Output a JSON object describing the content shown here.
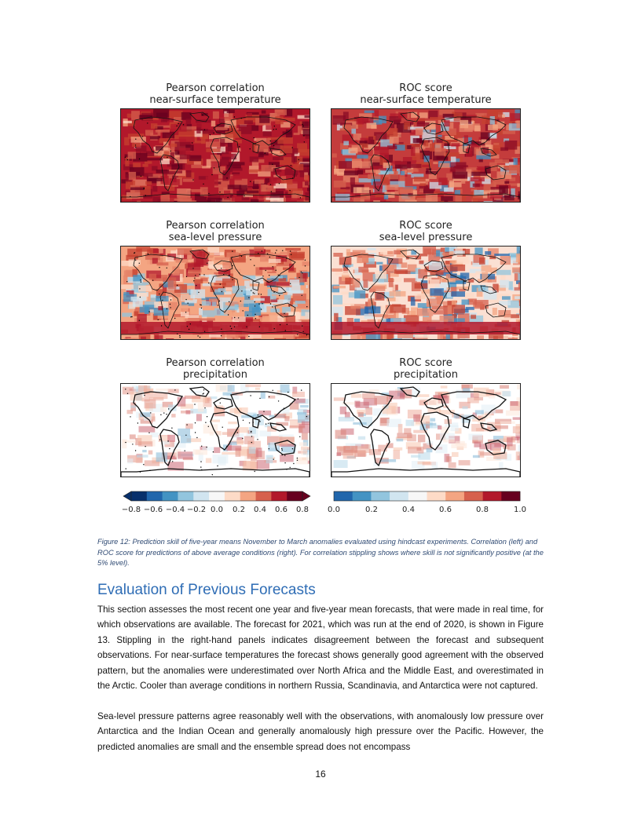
{
  "figure": {
    "panels": [
      {
        "title_line1": "Pearson correlation",
        "title_line2": "near-surface temperature",
        "map_style": "temp-corr"
      },
      {
        "title_line1": "ROC score",
        "title_line2": "near-surface temperature",
        "map_style": "temp-roc"
      },
      {
        "title_line1": "Pearson correlation",
        "title_line2": "sea-level pressure",
        "map_style": "slp-corr"
      },
      {
        "title_line1": "ROC score",
        "title_line2": "sea-level pressure",
        "map_style": "slp-roc"
      },
      {
        "title_line1": "Pearson correlation",
        "title_line2": "precipitation",
        "map_style": "precip-corr"
      },
      {
        "title_line1": "ROC score",
        "title_line2": "precipitation",
        "map_style": "precip-roc"
      }
    ],
    "colorbars": [
      {
        "ticks": [
          "−0.8",
          "−0.6",
          "−0.4",
          "−0.2",
          "0.0",
          "0.2",
          "0.4",
          "0.6",
          "0.8"
        ],
        "colors": [
          "#08306b",
          "#2166ac",
          "#4393c3",
          "#92c5de",
          "#d1e5f0",
          "#f7f7f7",
          "#fddbc7",
          "#f4a582",
          "#d6604d",
          "#b2182b",
          "#67001f"
        ]
      },
      {
        "ticks": [
          "0.0",
          "0.2",
          "0.4",
          "0.6",
          "0.8",
          "1.0"
        ],
        "colors": [
          "#2166ac",
          "#4393c3",
          "#92c5de",
          "#d1e5f0",
          "#f7f7f7",
          "#fddbc7",
          "#f4a582",
          "#d6604d",
          "#b2182b",
          "#67001f"
        ]
      }
    ],
    "caption": "Figure 12: Prediction skill of five-year means November to March anomalies evaluated using hindcast experiments. Correlation (left) and ROC score for predictions of above average conditions (right). For correlation stippling shows where skill is not significantly positive (at the 5% level)."
  },
  "section": {
    "heading": "Evaluation of Previous Forecasts",
    "paragraph1": "This section assesses the most recent one year and five-year mean forecasts, that were made in real time, for which observations are available. The forecast for 2021, which was run at the end of 2020, is shown in Figure 13. Stippling in the right-hand panels indicates disagreement between the forecast and subsequent observations. For near-surface temperatures the forecast shows generally good agreement with the observed pattern, but the anomalies were underestimated over North Africa and the Middle East, and overestimated in the Arctic. Cooler than average conditions in northern Russia, Scandinavia, and Antarctica were not captured.",
    "paragraph2": "Sea-level pressure patterns agree reasonably well with the observations, with anomalously low pressure over Antarctica and the Indian Ocean and generally anomalously high pressure over the Pacific. However, the predicted anomalies are small and the ensemble spread does not encompass"
  },
  "page_number": "16"
}
